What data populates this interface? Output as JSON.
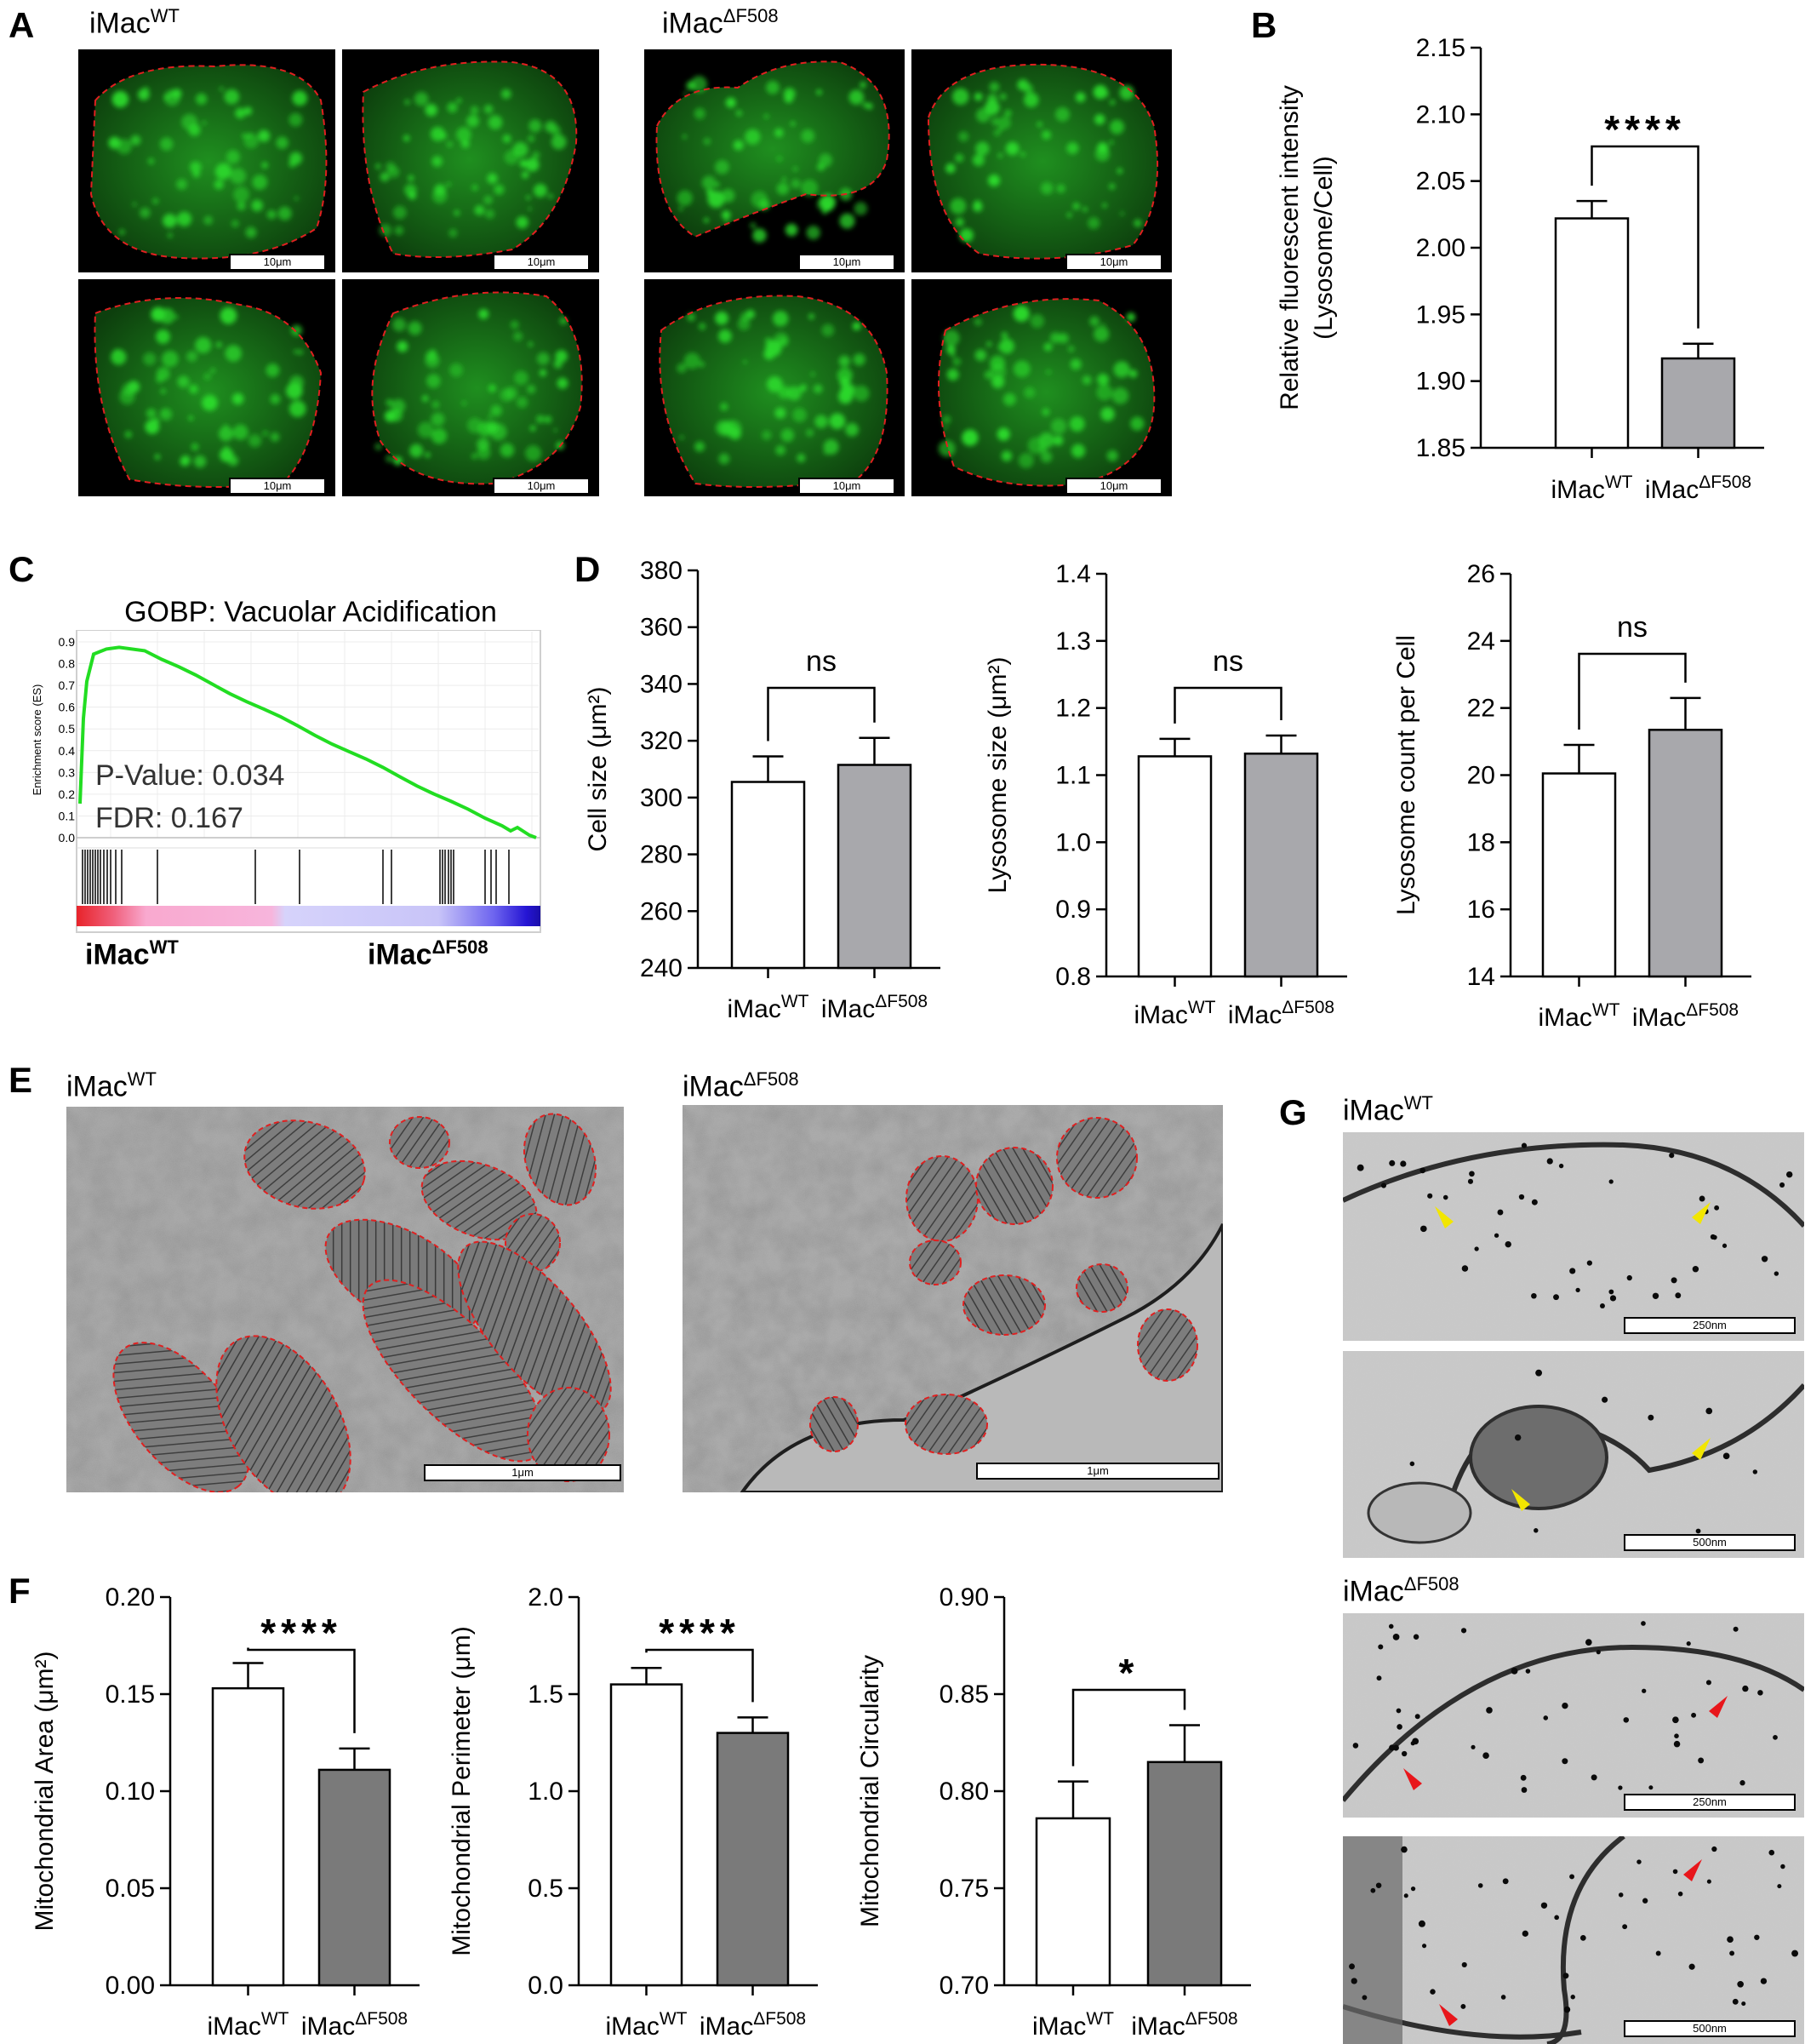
{
  "labels": {
    "A": "A",
    "B": "B",
    "C": "C",
    "D": "D",
    "E": "E",
    "F": "F",
    "G": "G",
    "wt_base": "iMac",
    "wt_sup": "WT",
    "mut_base": "iMac",
    "mut_sup": "ΔF508"
  },
  "scale_bars": {
    "fluor": "10μm",
    "em": "1μm",
    "g_250": "250nm",
    "g_500": "500nm"
  },
  "colors": {
    "outline": "#e02020",
    "bar_mut_light": "#a8a8ac",
    "bar_mut_dark": "#7a7a7a",
    "fluor_green": "#2bd82b",
    "gsea_line": "#22dd22",
    "arrow_yellow": "#f2e600",
    "arrow_red": "#e8161b"
  },
  "gsea": {
    "title": "GOBP: Vacuolar Acidification",
    "ylabel": "Enrichment score (ES)",
    "yticks": [
      "0.9",
      "0.8",
      "0.7",
      "0.6",
      "0.5",
      "0.4",
      "0.3",
      "0.2",
      "0.1",
      "0.0"
    ],
    "pvalue": "P-Value: 0.034",
    "fdr": "FDR: 0.167"
  },
  "chart_data": [
    {
      "id": "B",
      "type": "bar",
      "categories": [
        "iMacWT",
        "iMacΔF508"
      ],
      "values": [
        2.022,
        1.917
      ],
      "errors": [
        0.013,
        0.011
      ],
      "ylabel": "Relative fluorescent intensity (Lysosome/Cell)",
      "ylim": [
        1.85,
        2.15
      ],
      "yticks": [
        "2.15",
        "2.10",
        "2.05",
        "2.00",
        "1.95",
        "1.90",
        "1.85"
      ],
      "significance": "****"
    },
    {
      "id": "D1",
      "type": "bar",
      "categories": [
        "iMacWT",
        "iMacΔF508"
      ],
      "values": [
        305.5,
        311.5
      ],
      "errors": [
        9,
        9.5
      ],
      "ylabel": "Cell size (μm²)",
      "ylim": [
        240,
        380
      ],
      "yticks": [
        "380",
        "360",
        "340",
        "320",
        "300",
        "280",
        "260",
        "240"
      ],
      "significance": "ns"
    },
    {
      "id": "D2",
      "type": "bar",
      "categories": [
        "iMacWT",
        "iMacΔF508"
      ],
      "values": [
        1.128,
        1.132
      ],
      "errors": [
        0.026,
        0.027
      ],
      "ylabel": "Lysosome size (μm²)",
      "ylim": [
        0.8,
        1.4
      ],
      "yticks": [
        "1.4",
        "1.3",
        "1.2",
        "1.1",
        "1.0",
        "0.9",
        "0.8"
      ],
      "significance": "ns"
    },
    {
      "id": "D3",
      "type": "bar",
      "categories": [
        "iMacWT",
        "iMacΔF508"
      ],
      "values": [
        20.05,
        21.35
      ],
      "errors": [
        0.85,
        0.95
      ],
      "ylabel": "Lysosome count per Cell",
      "ylim": [
        14,
        26
      ],
      "yticks": [
        "26",
        "24",
        "22",
        "20",
        "18",
        "16",
        "14"
      ],
      "significance": "ns"
    },
    {
      "id": "F1",
      "type": "bar",
      "categories": [
        "iMacWT",
        "iMacΔF508"
      ],
      "values": [
        0.153,
        0.111
      ],
      "errors": [
        0.013,
        0.011
      ],
      "ylabel": "Mitochondrial Area (μm²)",
      "ylim": [
        0,
        0.2
      ],
      "yticks": [
        "0.20",
        "0.15",
        "0.10",
        "0.05",
        "0.00"
      ],
      "significance": "****"
    },
    {
      "id": "F2",
      "type": "bar",
      "categories": [
        "iMacWT",
        "iMacΔF508"
      ],
      "values": [
        1.55,
        1.3
      ],
      "errors": [
        0.085,
        0.08
      ],
      "ylabel": "Mitochondrial Perimeter (μm)",
      "ylim": [
        0,
        2.0
      ],
      "yticks": [
        "2.0",
        "1.5",
        "1.0",
        "0.5",
        "0.0"
      ],
      "significance": "****"
    },
    {
      "id": "F3",
      "type": "bar",
      "categories": [
        "iMacWT",
        "iMacΔF508"
      ],
      "values": [
        0.786,
        0.815
      ],
      "errors": [
        0.019,
        0.019
      ],
      "ylabel": "Mitochondrial Circularity",
      "ylim": [
        0.7,
        0.9
      ],
      "yticks": [
        "0.90",
        "0.85",
        "0.80",
        "0.75",
        "0.70"
      ],
      "significance": "*"
    }
  ]
}
